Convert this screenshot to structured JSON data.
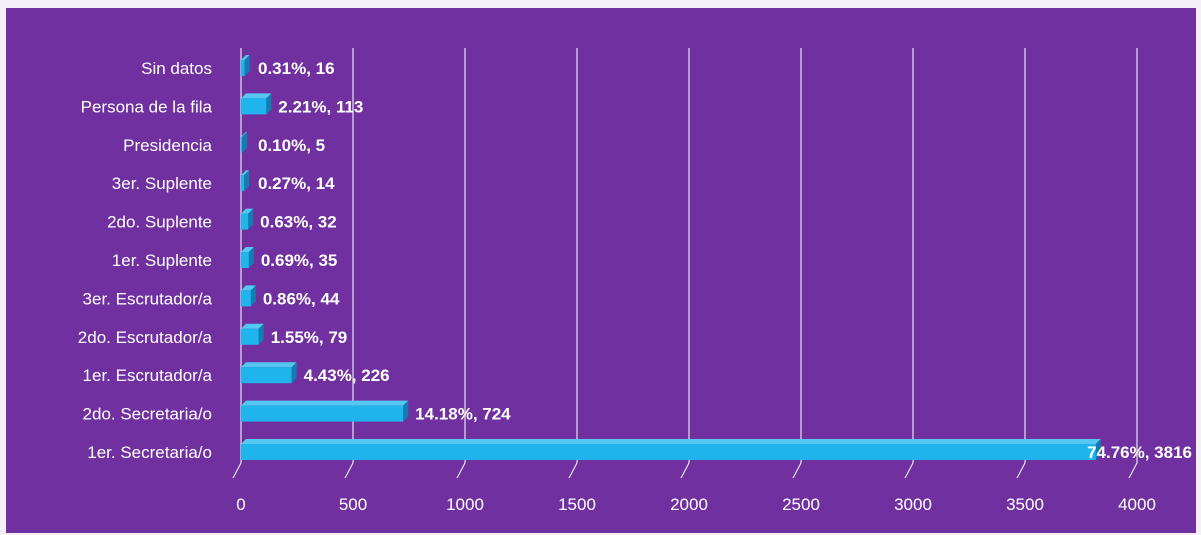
{
  "colors": {
    "background": "#7030a0",
    "bar_front": "#1fb4ec",
    "bar_top": "#55c8f2",
    "bar_side": "#0e7fb0",
    "grid": "#e6e6e6",
    "text": "#ffffff"
  },
  "chart_data": {
    "type": "bar",
    "orientation": "horizontal",
    "style": "3d",
    "title": "",
    "xlabel": "",
    "ylabel": "",
    "categories": [
      "1er. Secretaria/o",
      "2do. Secretaria/o",
      "1er. Escrutador/a",
      "2do. Escrutador/a",
      "3er. Escrutador/a",
      "1er. Suplente",
      "2do. Suplente",
      "3er. Suplente",
      "Presidencia",
      "Persona de la fila",
      "Sin datos"
    ],
    "values": [
      3816,
      724,
      226,
      79,
      44,
      35,
      32,
      14,
      5,
      113,
      16
    ],
    "percentages": [
      "74.76%",
      "14.18%",
      "4.43%",
      "1.55%",
      "0.86%",
      "0.69%",
      "0.63%",
      "0.27%",
      "0.10%",
      "2.21%",
      "0.31%"
    ],
    "data_labels": [
      "74.76%, 3816",
      "14.18%, 724",
      "4.43%, 226",
      "1.55%, 79",
      "0.86%, 44",
      "0.69%, 35",
      "0.63%, 32",
      "0.27%, 14",
      "0.10%, 5",
      "2.21%, 113",
      "0.31%, 16"
    ],
    "xlim": [
      0,
      4000
    ],
    "xticks": [
      0,
      500,
      1000,
      1500,
      2000,
      2500,
      3000,
      3500,
      4000
    ],
    "xtick_labels": [
      "0",
      "500",
      "1000",
      "1500",
      "2000",
      "2500",
      "3000",
      "3500",
      "4000"
    ],
    "grid": true,
    "legend": "none"
  }
}
